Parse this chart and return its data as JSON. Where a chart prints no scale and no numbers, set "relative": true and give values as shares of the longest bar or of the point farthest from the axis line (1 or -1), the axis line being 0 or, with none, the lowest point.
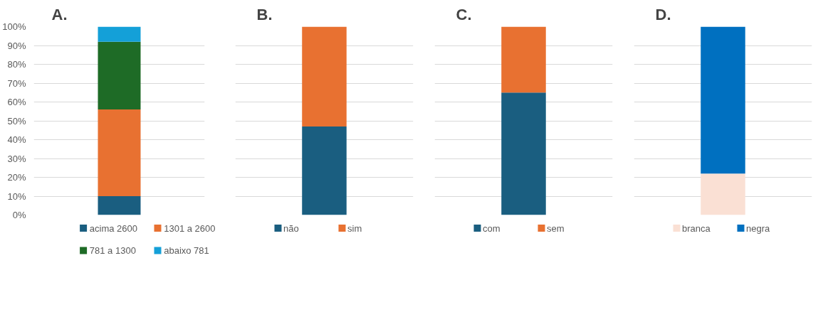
{
  "chart_data": [
    {
      "type": "bar",
      "title": "A.",
      "stacked": true,
      "categories": [
        null
      ],
      "ylim": [
        0,
        100
      ],
      "yticks": [
        {
          "value": 0,
          "label": "0%"
        },
        {
          "value": 10,
          "label": "10%"
        },
        {
          "value": 20,
          "label": "20%"
        },
        {
          "value": 30,
          "label": "30%"
        },
        {
          "value": 40,
          "label": "40%"
        },
        {
          "value": 50,
          "label": "50%"
        },
        {
          "value": 60,
          "label": "60%"
        },
        {
          "value": 70,
          "label": "70%"
        },
        {
          "value": 80,
          "label": "80%"
        },
        {
          "value": 90,
          "label": "90%"
        },
        {
          "value": 100,
          "label": "100%"
        }
      ],
      "tick_labels": "y",
      "grid": "y",
      "legend": "bottom",
      "series": [
        {
          "name": "acima 2600",
          "color": "#1a5e80",
          "values": [
            10
          ]
        },
        {
          "name": "1301 a 2600",
          "color": "#e87131",
          "values": [
            46
          ]
        },
        {
          "name": "781 a 1300",
          "color": "#1e6b26",
          "values": [
            36
          ]
        },
        {
          "name": "abaixo 781",
          "color": "#14a0d8",
          "values": [
            8
          ]
        }
      ]
    },
    {
      "type": "bar",
      "title": "B.",
      "stacked": true,
      "relative": true,
      "categories": [
        null
      ],
      "tick_labels": false,
      "grid": "y",
      "legend": "bottom",
      "series": [
        {
          "name": "não",
          "color": "#1a5e80",
          "values": [
            0.47
          ]
        },
        {
          "name": "sim",
          "color": "#e87131",
          "values": [
            0.53
          ]
        }
      ]
    },
    {
      "type": "bar",
      "title": "C.",
      "stacked": true,
      "relative": true,
      "categories": [
        null
      ],
      "tick_labels": false,
      "grid": "y",
      "legend": "bottom",
      "series": [
        {
          "name": "com",
          "color": "#1a5e80",
          "values": [
            0.65
          ]
        },
        {
          "name": "sem",
          "color": "#e87131",
          "values": [
            0.35
          ]
        }
      ]
    },
    {
      "type": "bar",
      "title": "D.",
      "stacked": true,
      "relative": true,
      "categories": [
        null
      ],
      "tick_labels": false,
      "grid": "y",
      "legend": "bottom",
      "series": [
        {
          "name": "branca",
          "color": "#fae0d4",
          "values": [
            0.22
          ]
        },
        {
          "name": "negra",
          "color": "#0070c0",
          "values": [
            0.78
          ]
        }
      ]
    }
  ]
}
